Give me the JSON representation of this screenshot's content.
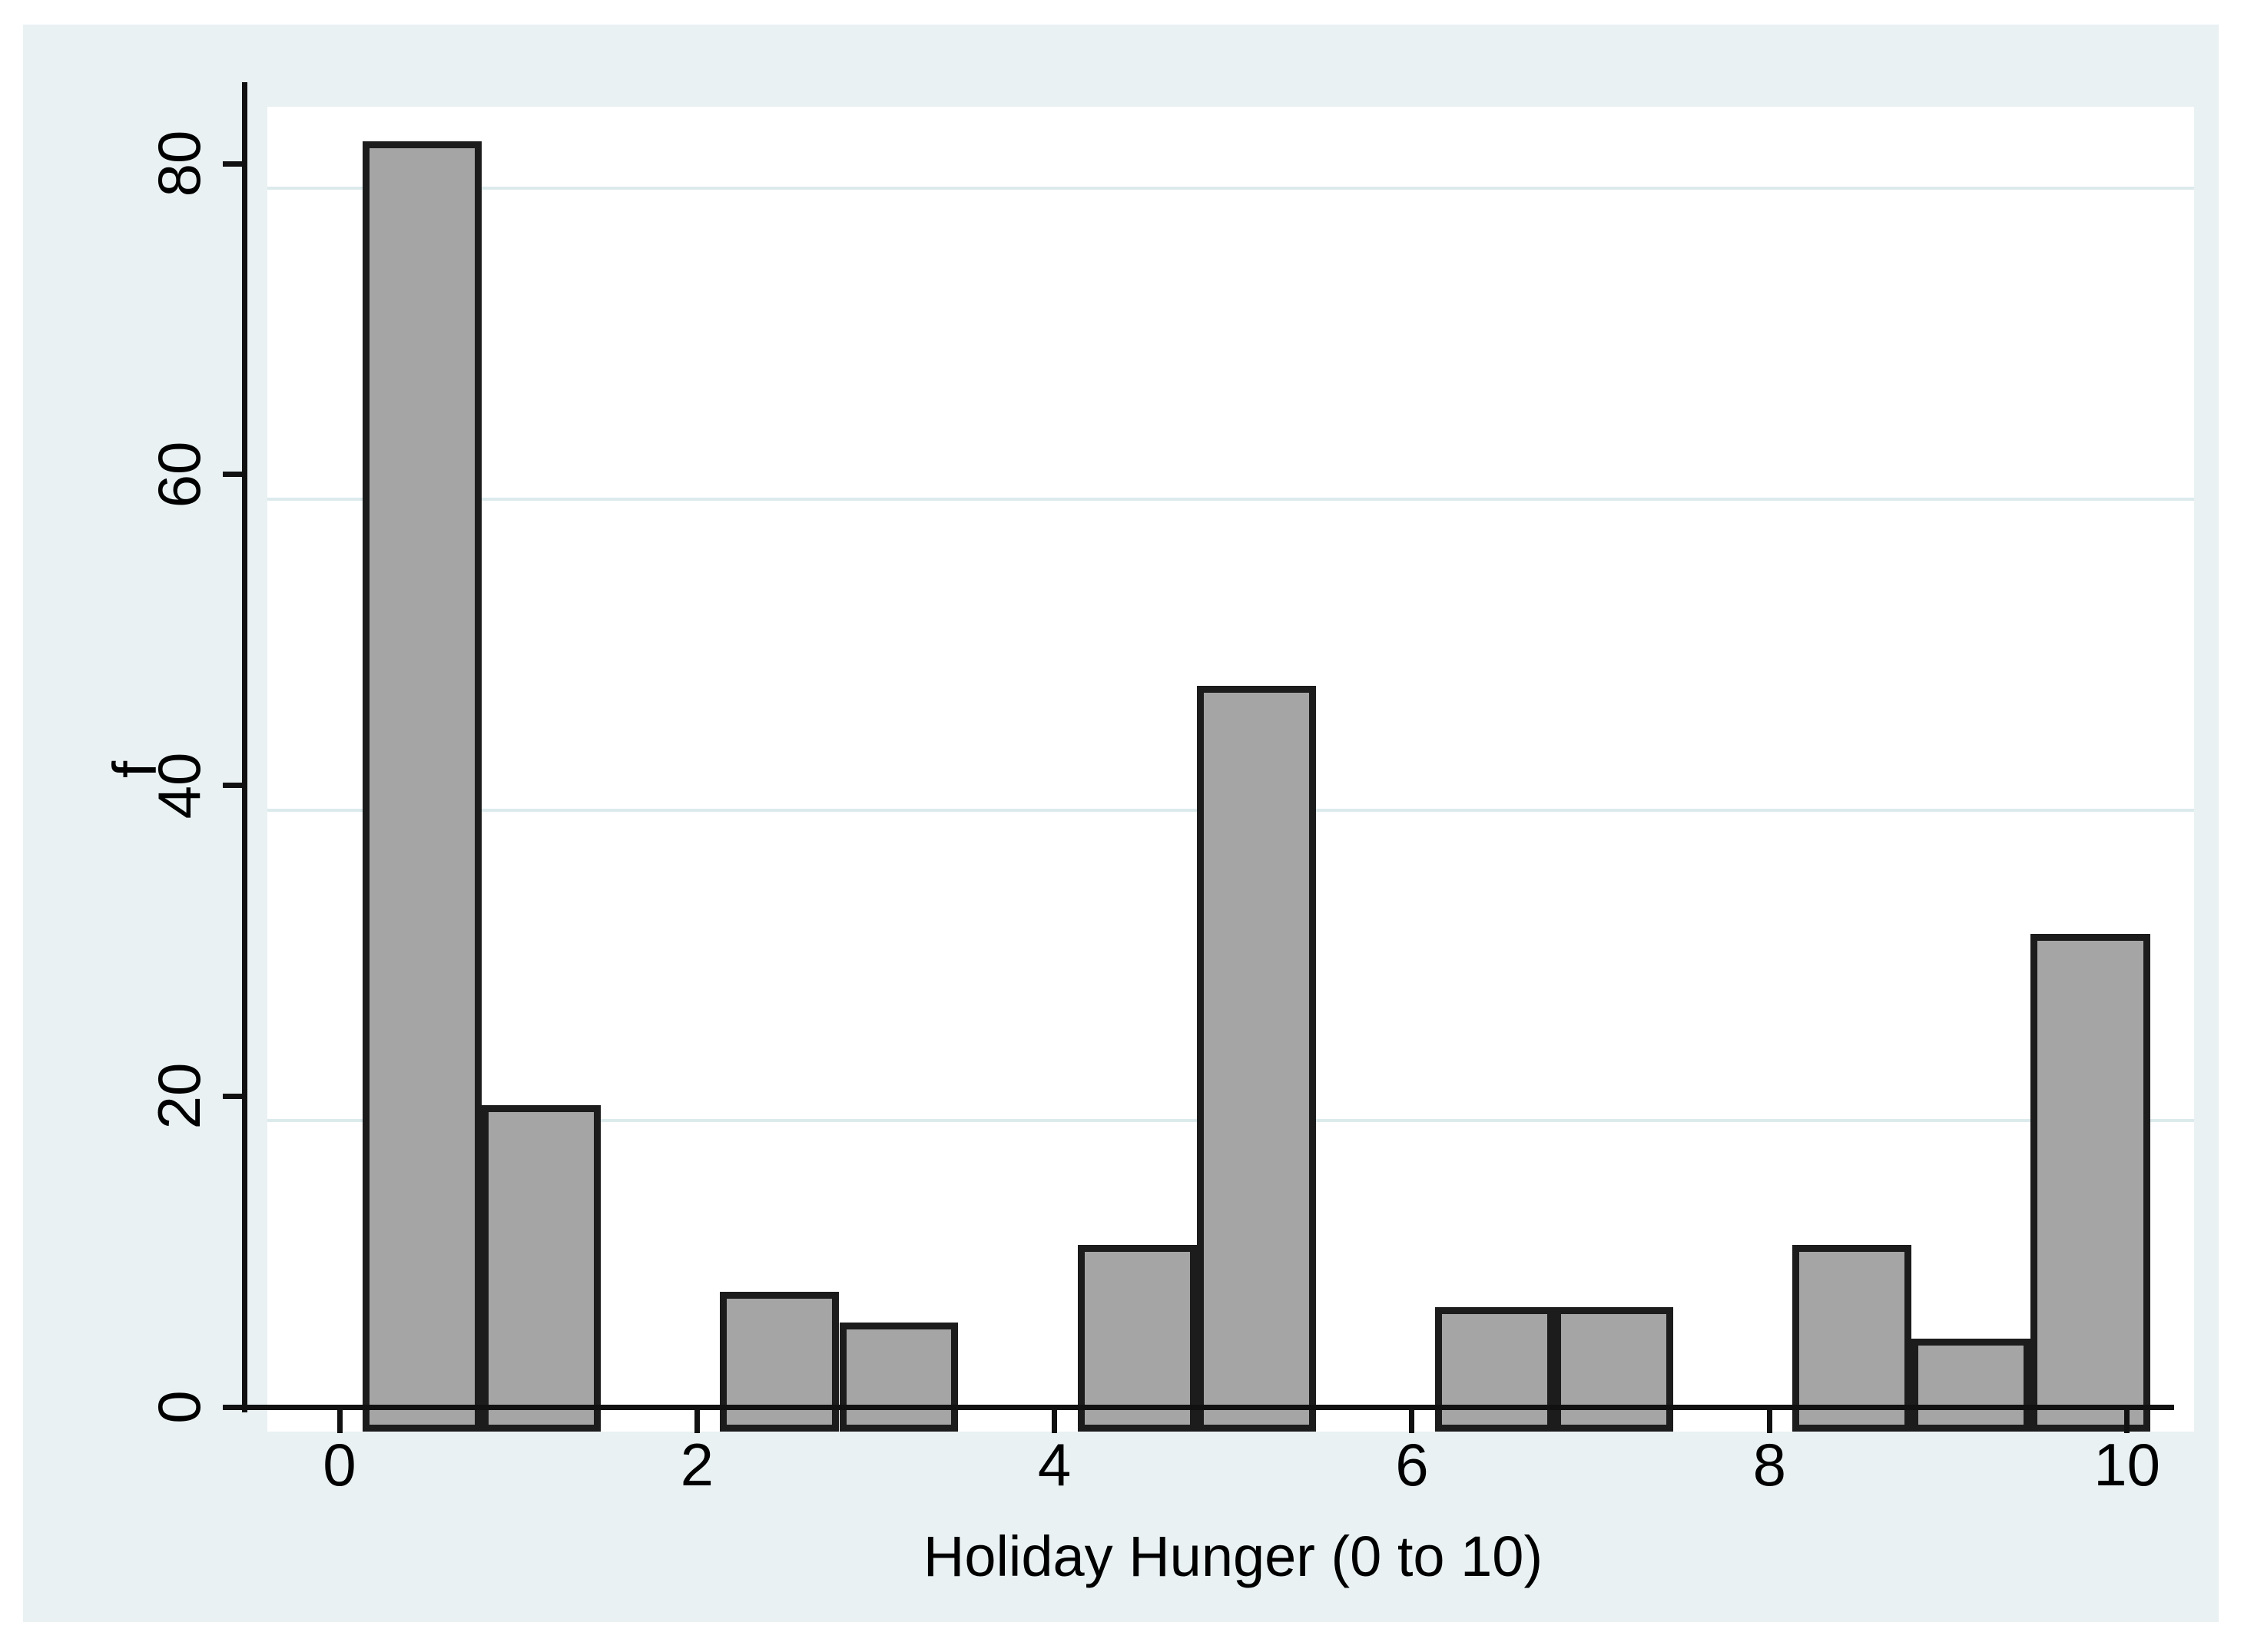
{
  "chart_data": {
    "type": "bar",
    "subtype": "histogram",
    "title": "",
    "xlabel": "Holiday Hunger (0 to 10)",
    "ylabel": "f",
    "categories": [
      0,
      1,
      2,
      3,
      4,
      5,
      6,
      7,
      8,
      9,
      10
    ],
    "values": [
      83,
      21,
      9,
      7,
      12,
      48,
      8,
      8,
      12,
      6,
      32
    ],
    "bins": [
      {
        "start": 0,
        "end": 0.667,
        "count": 83
      },
      {
        "start": 0.667,
        "end": 1.333,
        "count": 21
      },
      {
        "start": 2,
        "end": 2.667,
        "count": 9
      },
      {
        "start": 2.667,
        "end": 3.333,
        "count": 7
      },
      {
        "start": 4,
        "end": 4.667,
        "count": 12
      },
      {
        "start": 4.667,
        "end": 5.333,
        "count": 48
      },
      {
        "start": 6,
        "end": 6.667,
        "count": 8
      },
      {
        "start": 6.667,
        "end": 7.333,
        "count": 8
      },
      {
        "start": 8,
        "end": 8.667,
        "count": 12
      },
      {
        "start": 8.667,
        "end": 9.333,
        "count": 6
      },
      {
        "start": 9.333,
        "end": 10,
        "count": 32
      }
    ],
    "bin_width": 0.667,
    "x_ticks": [
      0,
      2,
      4,
      6,
      8,
      10
    ],
    "y_ticks": [
      0,
      20,
      40,
      60,
      80
    ],
    "gridlines_y": [
      20,
      40,
      60,
      80
    ],
    "xlim": [
      0,
      10
    ],
    "ylim": [
      0,
      85
    ],
    "grid": "horizontal-only",
    "legend": "none",
    "colors": {
      "figure_background": "#e9f1f2",
      "plot_background": "#ffffff",
      "gridline": "#dceaec",
      "bar_fill": "#a5a5a5",
      "bar_outline": "#1c1c1c",
      "axis": "#111111",
      "text": "#000000"
    }
  }
}
